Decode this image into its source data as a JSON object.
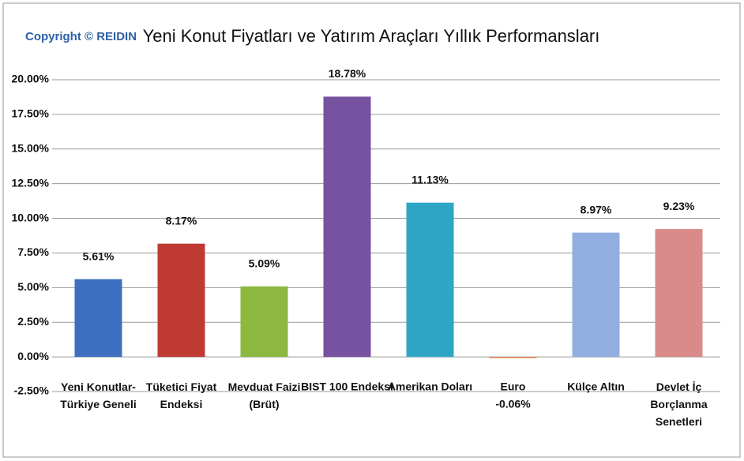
{
  "chart_data": {
    "type": "bar",
    "title": "Yeni Konut Fiyatları ve Yatırım Araçları Yıllık Performansları",
    "copyright": "Copyright © REIDIN",
    "categories": [
      "Yeni Konutlar-\nTürkiye Geneli",
      "Tüketici Fiyat\nEndeksi",
      "Mevduat Faizi\n(Brüt)",
      "BIST 100 Endeksi",
      "Amerikan Doları",
      "Euro",
      "Külçe Altın",
      "Devlet İç\nBorçlanma\nSenetleri"
    ],
    "values": [
      5.61,
      8.17,
      5.09,
      18.78,
      11.13,
      -0.06,
      8.97,
      9.23
    ],
    "value_labels": [
      "5.61%",
      "8.17%",
      "5.09%",
      "18.78%",
      "11.13%",
      "-0.06%",
      "8.97%",
      "9.23%"
    ],
    "colors": [
      "#3d6ebf",
      "#be3a33",
      "#8db83f",
      "#7652a0",
      "#2fa6c6",
      "#e0844a",
      "#92aee0",
      "#d98a89"
    ],
    "ylim": [
      -2.5,
      20
    ],
    "yticks": [
      {
        "value": -2.5,
        "label": "-2.50%"
      },
      {
        "value": 0,
        "label": "0.00%"
      },
      {
        "value": 2.5,
        "label": "2.50%"
      },
      {
        "value": 5,
        "label": "5.00%"
      },
      {
        "value": 7.5,
        "label": "7.50%"
      },
      {
        "value": 10,
        "label": "10.00%"
      },
      {
        "value": 12.5,
        "label": "12.50%"
      },
      {
        "value": 15,
        "label": "15.00%"
      },
      {
        "value": 17.5,
        "label": "17.50%"
      },
      {
        "value": 20,
        "label": "20.00%"
      }
    ],
    "grid": true
  }
}
